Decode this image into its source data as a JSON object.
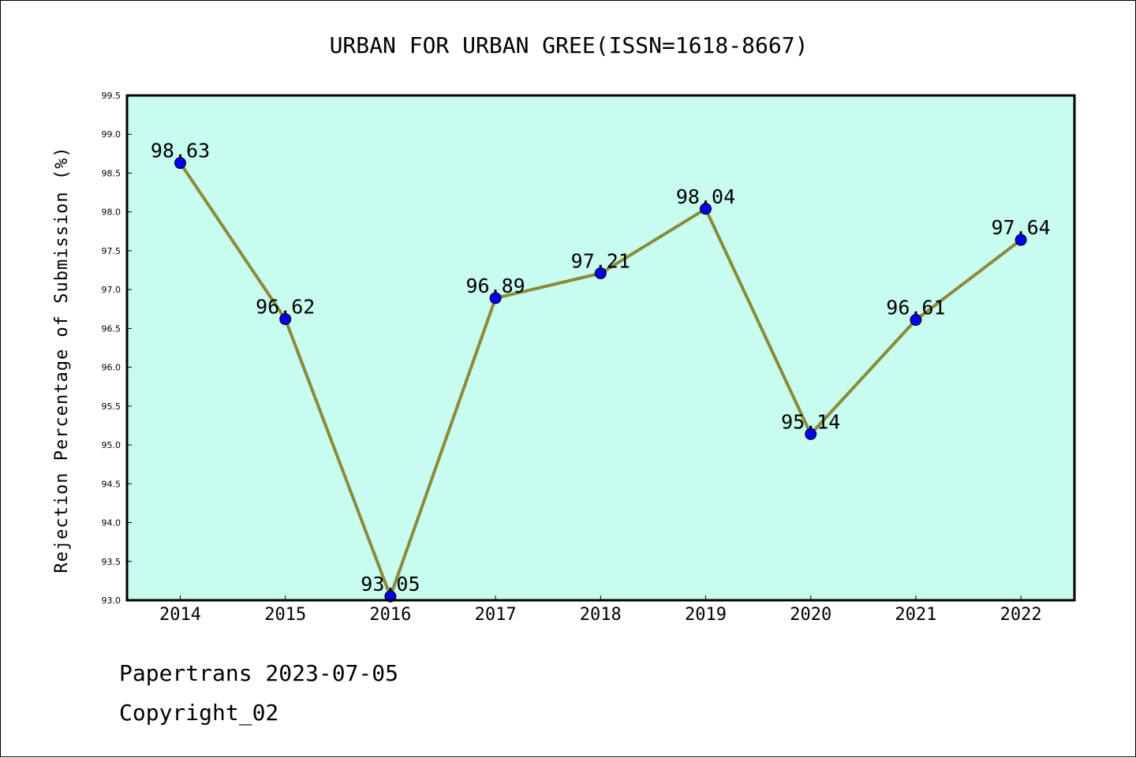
{
  "chart_data": {
    "type": "line",
    "title": "URBAN FOR URBAN GREE(ISSN=1618-8667)",
    "xlabel": "",
    "ylabel": "Rejection Percentage of Submission (%)",
    "categories": [
      "2014",
      "2015",
      "2016",
      "2017",
      "2018",
      "2019",
      "2020",
      "2021",
      "2022"
    ],
    "series": [
      {
        "values": [
          98.63,
          96.62,
          93.05,
          96.89,
          97.21,
          98.04,
          95.14,
          96.61,
          97.64
        ],
        "labels": [
          "98.63",
          "96.62",
          "93.05",
          "96.89",
          "97.21",
          "98.04",
          "95.14",
          "96.61",
          "97.64"
        ]
      }
    ],
    "ylim": [
      93.0,
      99.5
    ],
    "yticks": [
      "93.0",
      "93.5",
      "94.0",
      "94.5",
      "95.0",
      "95.5",
      "96.0",
      "96.5",
      "97.0",
      "97.5",
      "98.0",
      "98.5",
      "99.0",
      "99.5"
    ],
    "grid": false,
    "legend": "none",
    "colors": {
      "plot_background": "#c8fcee",
      "line": "#8c8a3a",
      "marker": "#0000ee"
    }
  },
  "footer": {
    "line1": "Papertrans 2023-07-05",
    "line2": "Copyright_02"
  }
}
